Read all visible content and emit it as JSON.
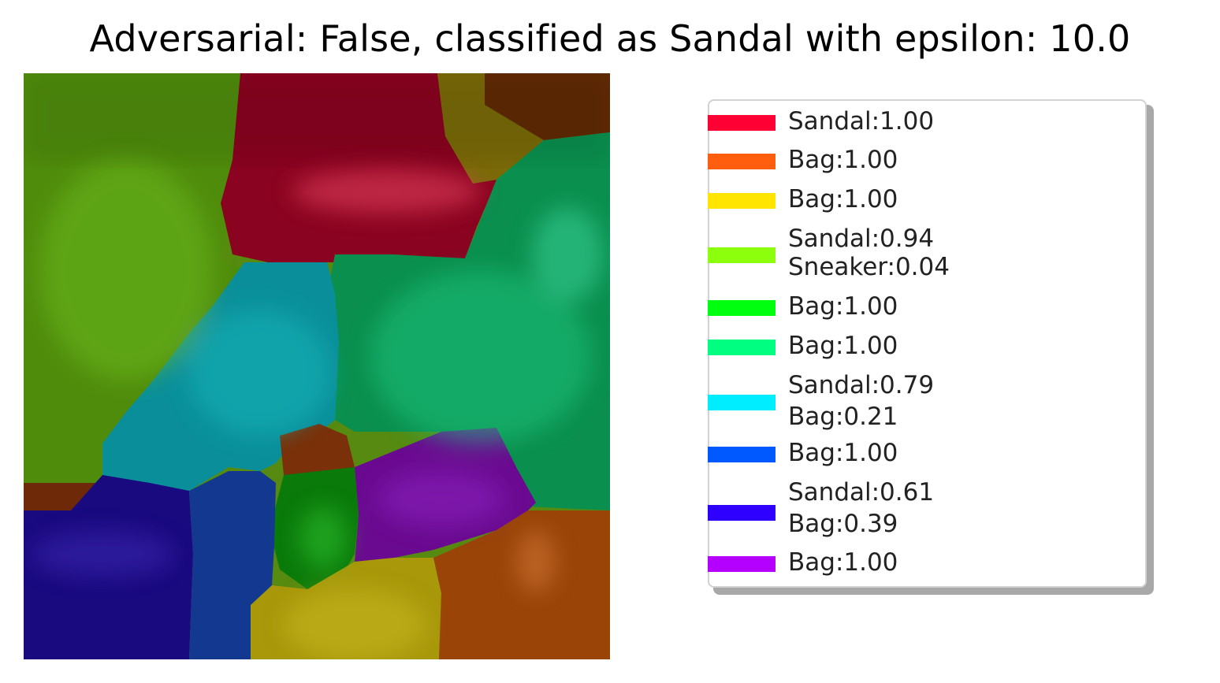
{
  "title": "Adversarial: False, classified as Sandal with epsilon: 10.0",
  "colors": {
    "background": "#ffffff",
    "legend_border": "#d2d2d2",
    "legend_shadow": "#a8a8a8"
  },
  "legend": [
    {
      "color": "#ff0035",
      "lines": [
        "Sandal:1.00"
      ]
    },
    {
      "color": "#ff5e0e",
      "lines": [
        "Bag:1.00"
      ]
    },
    {
      "color": "#ffe500",
      "lines": [
        "Bag:1.00"
      ]
    },
    {
      "color": "#8bff0c",
      "lines": [
        "Sandal:0.94",
        "Sneaker:0.04"
      ]
    },
    {
      "color": "#00ff0e",
      "lines": [
        "Bag:1.00"
      ]
    },
    {
      "color": "#00ff80",
      "lines": [
        "Bag:1.00"
      ]
    },
    {
      "color": "#00ecff",
      "lines": [
        "Sandal:0.79",
        "Bag:0.21"
      ]
    },
    {
      "color": "#0059ff",
      "lines": [
        "Bag:1.00"
      ]
    },
    {
      "color": "#2d00ff",
      "lines": [
        "Sandal:0.61",
        "Bag:0.39"
      ]
    },
    {
      "color": "#b400ff",
      "lines": [
        "Bag:1.00"
      ]
    }
  ]
}
